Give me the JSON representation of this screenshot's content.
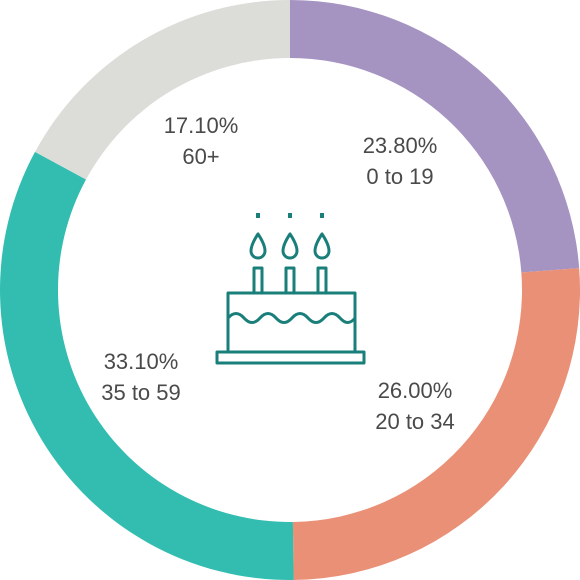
{
  "chart_data": {
    "type": "pie",
    "donut": true,
    "center_icon": "birthday-cake-icon",
    "slices": [
      {
        "value": 23.8,
        "value_label": "23.80%",
        "category": "0 to 19",
        "color": "#a593c2"
      },
      {
        "value": 26.0,
        "value_label": "26.00%",
        "category": "20 to 34",
        "color": "#ea9076"
      },
      {
        "value": 33.1,
        "value_label": "33.10%",
        "category": "35 to 59",
        "color": "#33bdb0"
      },
      {
        "value": 17.1,
        "value_label": "17.10%",
        "category": "60+",
        "color": "#dcdcd8"
      }
    ],
    "icon_color": "#1a7f7a"
  }
}
